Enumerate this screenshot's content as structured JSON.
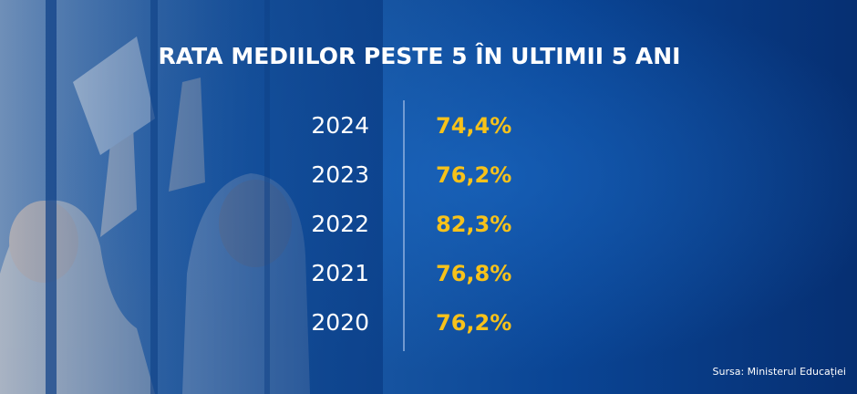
{
  "title": "RATA MEDIILOR PESTE 5 ÎN ULTIMII 5 ANI",
  "rows": [
    [
      "2024",
      "74,4%"
    ],
    [
      "2023",
      "76,2%"
    ],
    [
      "2022",
      "82,3%"
    ],
    [
      "2021",
      "76,8%"
    ],
    [
      "2020",
      "76,2%"
    ]
  ],
  "source": "Sursa: Ministerul Educației"
}
